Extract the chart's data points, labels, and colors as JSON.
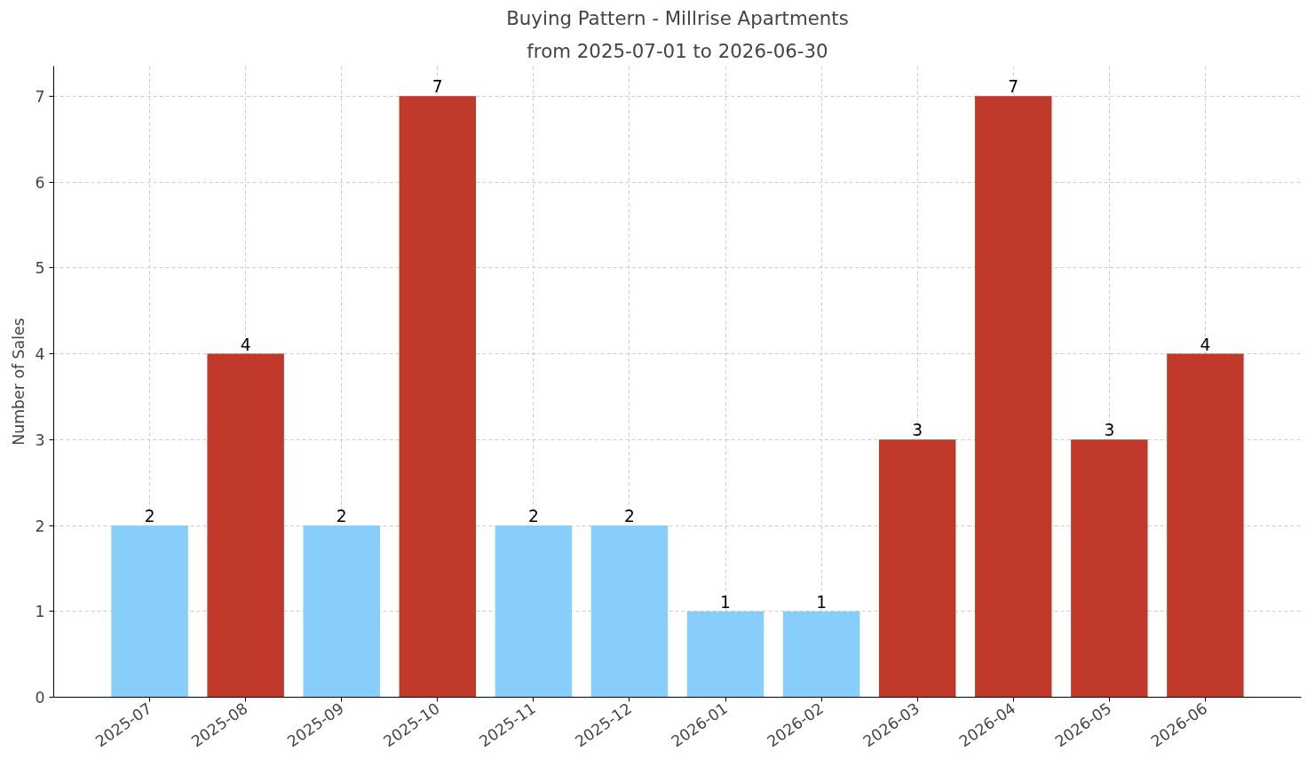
{
  "chart_data": {
    "type": "bar",
    "title": "Buying Pattern - Millrise Apartments",
    "subtitle": "from 2025-07-01 to 2026-06-30",
    "ylabel": "Number of Sales",
    "categories": [
      "2025-07",
      "2025-08",
      "2025-09",
      "2025-10",
      "2025-11",
      "2025-12",
      "2026-01",
      "2026-02",
      "2026-03",
      "2026-04",
      "2026-05",
      "2026-06"
    ],
    "values": [
      2,
      4,
      2,
      7,
      2,
      2,
      1,
      1,
      3,
      7,
      3,
      4
    ],
    "colors": [
      "#87cefa",
      "#c0392b",
      "#87cefa",
      "#c0392b",
      "#87cefa",
      "#87cefa",
      "#87cefa",
      "#87cefa",
      "#c0392b",
      "#c0392b",
      "#c0392b",
      "#c0392b"
    ],
    "ylim": [
      0,
      7.35
    ],
    "yticks": [
      0,
      1,
      2,
      3,
      4,
      5,
      6,
      7
    ],
    "grid": true,
    "data_labels": true
  }
}
